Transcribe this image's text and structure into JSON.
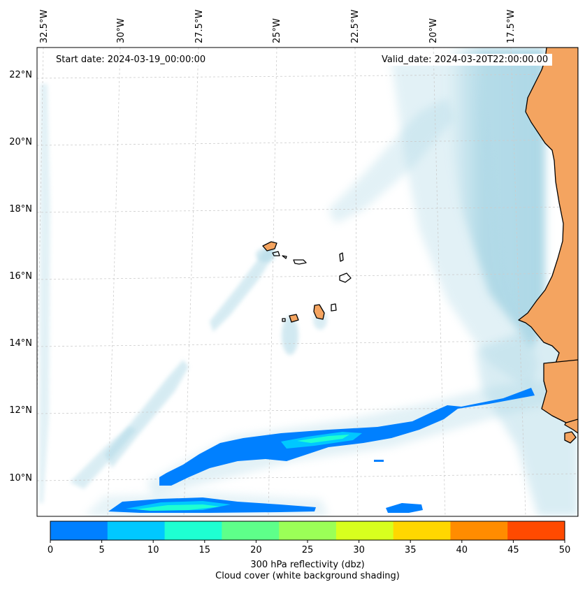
{
  "annotations": {
    "start_date": "Start date: 2024-03-19_00:00:00",
    "valid_date": "Valid_date: 2024-03-20T22:00:00.00"
  },
  "longitude_labels": [
    "32.5°W",
    "30°W",
    "27.5°W",
    "25°W",
    "22.5°W",
    "20°W",
    "17.5°W"
  ],
  "latitude_labels": [
    "22°N",
    "20°N",
    "18°N",
    "16°N",
    "14°N",
    "12°N",
    "10°N"
  ],
  "colorbar": {
    "label_line1": "300 hPa reflectivity (dbz)",
    "label_line2": "Cloud cover (white background shading)",
    "ticks": [
      "0",
      "5",
      "10",
      "15",
      "20",
      "25",
      "30",
      "35",
      "40",
      "45",
      "50"
    ],
    "colors": [
      "#0080ff",
      "#00c8ff",
      "#1effd2",
      "#5eff8a",
      "#9bff57",
      "#d8ff1e",
      "#ffd700",
      "#ff8c00",
      "#ff4a00"
    ]
  },
  "colors": {
    "land": "#f4a460",
    "cloud": "#add8e6",
    "reflectivity_0_10": "#0080ff",
    "reflectivity_10_15": "#00c8ff",
    "reflectivity_15_20": "#1effd2",
    "gridline": "#cccccc"
  }
}
